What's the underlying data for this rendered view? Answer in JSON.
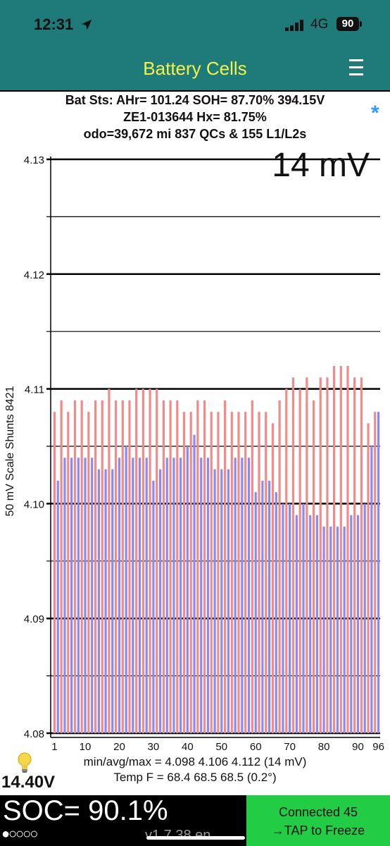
{
  "status_bar": {
    "time": "12:31",
    "network": "4G",
    "battery_level": "90"
  },
  "nav": {
    "title": "Battery Cells"
  },
  "header": {
    "line1": "Bat Sts: AHr= 101.24 SOH= 87.70% 394.15V",
    "line2": "ZE1-013644   Hx= 81.75%",
    "line3": "odo=39,672 mi 837 QCs & 155 L1/L2s",
    "asterisk": "*"
  },
  "chart_data": {
    "type": "bar",
    "ylabel": "50 mV Scale   Shunts 8421",
    "spread_label": "14 mV",
    "ylim": [
      4.08,
      4.13
    ],
    "y_ticks": [
      "4.08",
      "4.09",
      "4.10",
      "4.11",
      "4.12",
      "4.13"
    ],
    "x_ticks": [
      "1",
      "10",
      "20",
      "30",
      "40",
      "50",
      "60",
      "70",
      "80",
      "90",
      "96"
    ],
    "x_tick_values": [
      1,
      10,
      20,
      30,
      40,
      50,
      60,
      70,
      80,
      90,
      96
    ],
    "cell_count": 96,
    "colors": {
      "odd": "#f28a8a",
      "even": "#8a8af2"
    },
    "values": [
      4.108,
      4.102,
      4.109,
      4.104,
      4.108,
      4.104,
      4.109,
      4.104,
      4.109,
      4.104,
      4.108,
      4.104,
      4.109,
      4.103,
      4.109,
      4.103,
      4.11,
      4.103,
      4.109,
      4.104,
      4.109,
      4.105,
      4.109,
      4.104,
      4.11,
      4.104,
      4.11,
      4.104,
      4.11,
      4.102,
      4.11,
      4.103,
      4.109,
      4.104,
      4.109,
      4.104,
      4.109,
      4.104,
      4.108,
      4.105,
      4.108,
      4.106,
      4.109,
      4.104,
      4.109,
      4.104,
      4.108,
      4.103,
      4.108,
      4.103,
      4.109,
      4.103,
      4.108,
      4.104,
      4.108,
      4.104,
      4.108,
      4.104,
      4.109,
      4.101,
      4.108,
      4.102,
      4.108,
      4.102,
      4.107,
      4.101,
      4.109,
      4.1,
      4.11,
      4.1,
      4.111,
      4.099,
      4.11,
      4.1,
      4.111,
      4.099,
      4.109,
      4.099,
      4.111,
      4.098,
      4.111,
      4.098,
      4.112,
      4.098,
      4.112,
      4.098,
      4.112,
      4.099,
      4.111,
      4.099,
      4.111,
      4.1,
      4.107,
      4.105,
      4.108,
      4.108
    ]
  },
  "stats": {
    "minavgmax": "min/avg/max = 4.098 4.106 4.112  (14 mV)",
    "temp": "Temp F = 68.4  68.5  68.5  (0.2°)"
  },
  "footer": {
    "voltage": "14.40V",
    "soc": "SOC= 90.1%",
    "dots": "●○○○○",
    "version": "v1.7.38 en",
    "connect_line1": "Connected 45",
    "connect_line2": "→TAP to Freeze"
  }
}
